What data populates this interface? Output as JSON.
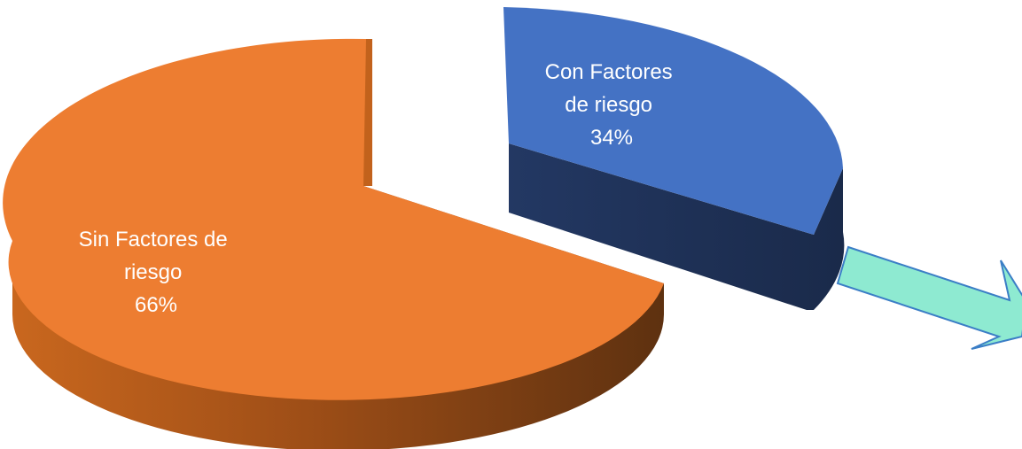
{
  "chart_data": {
    "type": "pie",
    "style": "3d-exploded",
    "title": "",
    "slices": [
      {
        "label_lines": [
          "Sin Factores de",
          "riesgo",
          "66%"
        ],
        "value": 66,
        "color": "#ED7D31",
        "side_color": "#A84F16",
        "exploded": false
      },
      {
        "label_lines": [
          "Con Factores",
          "de riesgo",
          "34%"
        ],
        "value": 34,
        "color": "#4472C4",
        "side_color": "#1F3254",
        "exploded": true
      }
    ],
    "arrow": {
      "color": "#8EEAD1",
      "stroke": "#3B7EC6",
      "direction": "right-down"
    },
    "legend": "none"
  }
}
